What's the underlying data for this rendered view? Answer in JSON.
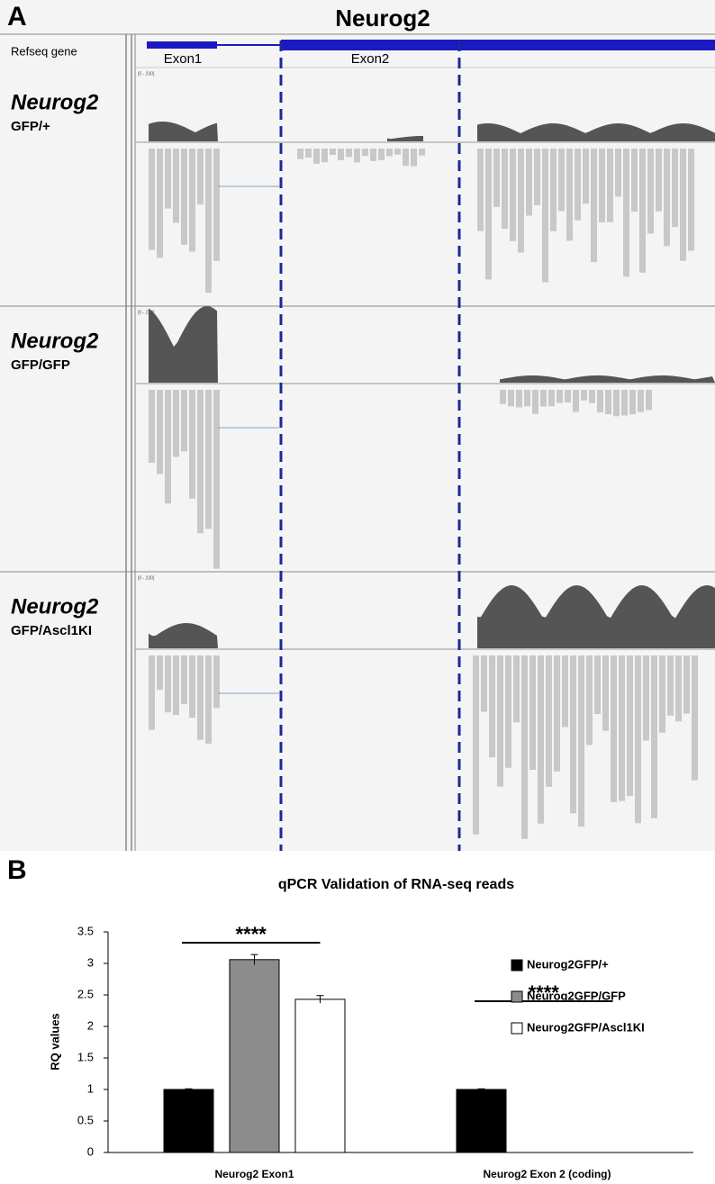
{
  "panel_a": {
    "label": "A",
    "title": "Neurog2",
    "gene_track": "Refseq gene",
    "exons": [
      "Exon1",
      "Exon2"
    ],
    "tracks": [
      {
        "gene": "Neurog2",
        "genotype": "GFP/+",
        "range": "[0 - 230]"
      },
      {
        "gene": "Neurog2",
        "genotype": "GFP/GFP",
        "range": "[0 - 230]"
      },
      {
        "gene": "Neurog2",
        "genotype": "GFP/Ascl1KI",
        "range": "[0 - 230]"
      }
    ]
  },
  "panel_b": {
    "label": "B"
  },
  "chart_data": {
    "type": "bar",
    "title": "qPCR Validation of RNA-seq reads",
    "y_label": "RQ values",
    "categories": [
      "Neurog2 Exon1",
      "Neurog2 Exon 2 (coding)"
    ],
    "series": [
      {
        "name": "Neurog2GFP/+",
        "color": "#000000",
        "values": [
          1,
          1
        ],
        "errors": [
          0.01,
          0.01
        ]
      },
      {
        "name": "Neurog2GFP/GFP",
        "color": "#8c8c8c",
        "values": [
          3.06,
          0
        ],
        "errors": [
          0.08,
          0
        ]
      },
      {
        "name": "Neurog2GFP/Ascl1KI",
        "color": "#ffffff",
        "values": [
          2.43,
          0
        ],
        "errors": [
          0.06,
          0
        ]
      }
    ],
    "ylim": [
      0,
      3.5
    ],
    "yticks": [
      0,
      0.5,
      1,
      1.5,
      2,
      2.5,
      3,
      3.5
    ],
    "annotations": [
      "****",
      "****"
    ],
    "legend": "upper right",
    "grid": false
  }
}
